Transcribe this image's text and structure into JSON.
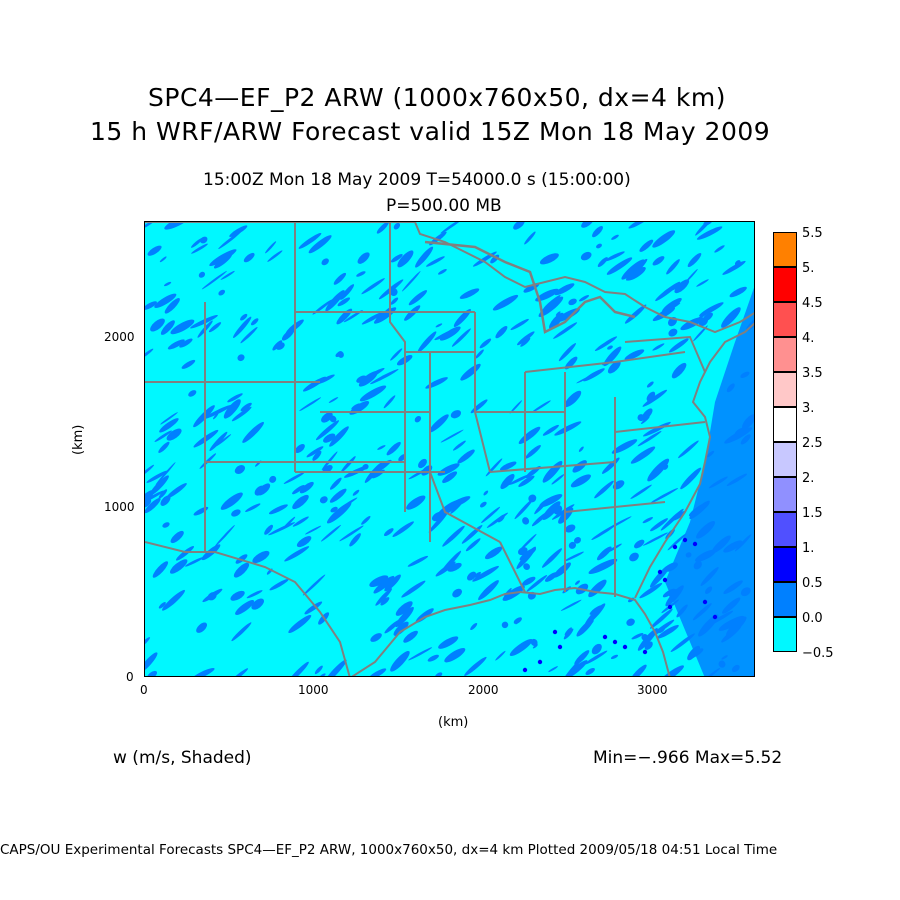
{
  "header": {
    "title_line1": "SPC4—EF_P2 ARW (1000x760x50, dx=4 km)",
    "title_line2": "15 h WRF/ARW Forecast valid 15Z Mon 18 May 2009",
    "time_line": "15:00Z Mon 18 May 2009     T=54000.0 s (15:00:00)",
    "level_line": "P=500.00 MB"
  },
  "axes": {
    "x_label": "(km)",
    "y_label": "(km)",
    "x_ticks": [
      "0",
      "1000",
      "2000",
      "3000"
    ],
    "y_ticks": [
      "0",
      "1000",
      "2000"
    ]
  },
  "colorbar": {
    "labels": [
      "5.5",
      "5.",
      "4.5",
      "4.",
      "3.5",
      "3.",
      "2.5",
      "2.",
      "1.5",
      "1.",
      "0.5",
      "0.0",
      "−0.5"
    ],
    "colors": [
      "#ff8000",
      "#ff0000",
      "#ff5050",
      "#ff9090",
      "#ffc8c8",
      "#ffffff",
      "#c8c8ff",
      "#9090ff",
      "#5050ff",
      "#0000ff",
      "#0080ff",
      "#00f8ff"
    ]
  },
  "field_label": "w (m/s, Shaded)",
  "minmax": "Min=−.966 Max=5.52",
  "footer": "CAPS/OU Experimental Forecasts  SPC4—EF_P2 ARW, 1000x760x50, dx=4 km  Plotted 2009/05/18 04:51 Local Time",
  "map_colors": {
    "background": "#00f8ff",
    "updraft": "#0080ff",
    "strong_updraft": "#0000ff",
    "borders": "#808080"
  }
}
